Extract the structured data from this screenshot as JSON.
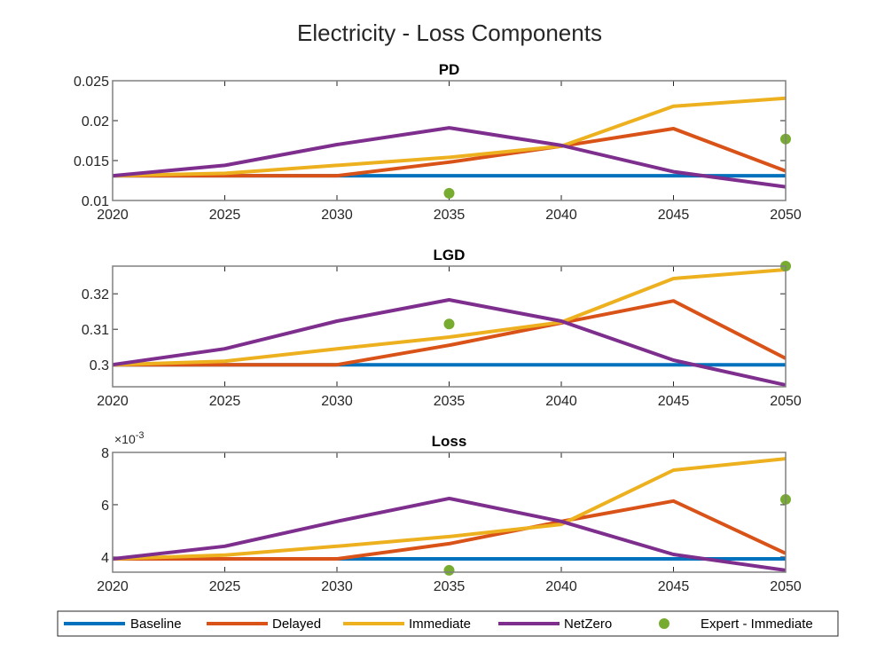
{
  "chart_data": {
    "type": "line",
    "title": "Electricity - Loss Components",
    "colors": {
      "Baseline": "#0072BD",
      "Delayed": "#D95319",
      "Immediate": "#EDB120",
      "NetZero": "#7E2F8E",
      "Expert - Immediate": "#77AC30",
      "axis": "#808080",
      "text": "#262626"
    },
    "legend": {
      "placement": "bottom",
      "entries": [
        "Baseline",
        "Delayed",
        "Immediate",
        "NetZero",
        "Expert - Immediate"
      ]
    },
    "subplots": [
      {
        "title": "PD",
        "xlabel": "",
        "ylabel": "",
        "x": [
          2020,
          2025,
          2030,
          2035,
          2040,
          2045,
          2050
        ],
        "xticks": [
          "2020",
          "2025",
          "2030",
          "2035",
          "2040",
          "2045",
          "2050"
        ],
        "xlim": [
          2020,
          2050
        ],
        "ylim": [
          0.01,
          0.025
        ],
        "yticks": [
          0.01,
          0.015,
          0.02,
          0.025
        ],
        "ytick_labels": [
          "0.01",
          "0.015",
          "0.02",
          "0.025"
        ],
        "exponent_label": "",
        "series": [
          {
            "name": "Baseline",
            "values": [
              0.0131,
              0.0131,
              0.0131,
              0.0131,
              0.0131,
              0.0131,
              0.0131
            ]
          },
          {
            "name": "Delayed",
            "values": [
              0.0131,
              0.0131,
              0.0131,
              0.0148,
              0.0168,
              0.019,
              0.0137
            ]
          },
          {
            "name": "Immediate",
            "values": [
              0.0131,
              0.0134,
              0.0144,
              0.0154,
              0.0168,
              0.0218,
              0.0228
            ]
          },
          {
            "name": "NetZero",
            "values": [
              0.0131,
              0.0144,
              0.017,
              0.0191,
              0.0169,
              0.0136,
              0.0117
            ]
          }
        ],
        "scatter": {
          "name": "Expert - Immediate",
          "x": [
            2035,
            2050
          ],
          "values": [
            0.0109,
            0.0177
          ]
        }
      },
      {
        "title": "LGD",
        "xlabel": "",
        "ylabel": "",
        "x": [
          2020,
          2025,
          2030,
          2035,
          2040,
          2045,
          2050
        ],
        "xticks": [
          "2020",
          "2025",
          "2030",
          "2035",
          "2040",
          "2045",
          "2050"
        ],
        "xlim": [
          2020,
          2050
        ],
        "ylim": [
          0.2938,
          0.3278
        ],
        "yticks": [
          0.3,
          0.31,
          0.32
        ],
        "ytick_labels": [
          "0.3",
          "0.31",
          "0.32"
        ],
        "exponent_label": "",
        "series": [
          {
            "name": "Baseline",
            "values": [
              0.3,
              0.3,
              0.3,
              0.3,
              0.3,
              0.3,
              0.3
            ]
          },
          {
            "name": "Delayed",
            "values": [
              0.3,
              0.3,
              0.3,
              0.3055,
              0.3118,
              0.318,
              0.3018
            ]
          },
          {
            "name": "Immediate",
            "values": [
              0.3,
              0.301,
              0.3045,
              0.3078,
              0.312,
              0.3243,
              0.3268
            ]
          },
          {
            "name": "NetZero",
            "values": [
              0.3,
              0.3045,
              0.3123,
              0.3183,
              0.3123,
              0.3013,
              0.2943
            ]
          }
        ],
        "scatter": {
          "name": "Expert - Immediate",
          "x": [
            2035,
            2050
          ],
          "values": [
            0.3115,
            0.3278
          ]
        }
      },
      {
        "title": "Loss",
        "xlabel": "",
        "ylabel": "",
        "x": [
          2020,
          2025,
          2030,
          2035,
          2040,
          2045,
          2050
        ],
        "xticks": [
          "2020",
          "2025",
          "2030",
          "2035",
          "2040",
          "2045",
          "2050"
        ],
        "xlim": [
          2020,
          2050
        ],
        "ylim": [
          3.42,
          8
        ],
        "yticks": [
          4,
          6,
          8
        ],
        "ytick_labels": [
          "4",
          "6",
          "8"
        ],
        "exponent_label": "×10",
        "exponent_power": "-3",
        "value_scale": "×10^-3",
        "series": [
          {
            "name": "Baseline",
            "values": [
              3.93,
              3.93,
              3.93,
              3.93,
              3.93,
              3.93,
              3.93
            ]
          },
          {
            "name": "Delayed",
            "values": [
              3.93,
              3.93,
              3.93,
              4.51,
              5.36,
              6.14,
              4.14
            ]
          },
          {
            "name": "Immediate",
            "values": [
              3.93,
              4.07,
              4.41,
              4.78,
              5.25,
              7.32,
              7.76
            ]
          },
          {
            "name": "NetZero",
            "values": [
              3.93,
              4.41,
              5.36,
              6.24,
              5.36,
              4.1,
              3.49
            ]
          }
        ],
        "scatter": {
          "name": "Expert - Immediate",
          "x": [
            2035,
            2050
          ],
          "values": [
            3.49,
            6.2
          ]
        }
      }
    ]
  }
}
